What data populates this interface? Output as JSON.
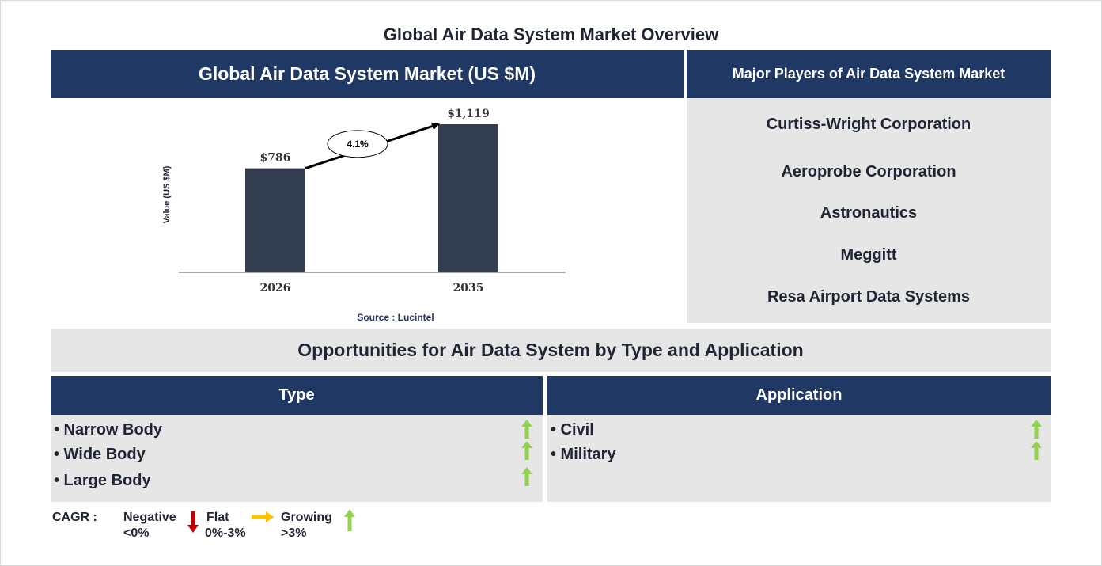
{
  "page": {
    "title": "Global Air Data System Market Overview"
  },
  "chart_panel": {
    "header": "Global Air Data System Market (US $M)",
    "source": "Source : Lucintel"
  },
  "chart_data": {
    "type": "bar",
    "title": "Global Air Data System Market (US $M)",
    "categories": [
      "2026",
      "2035"
    ],
    "values": [
      786,
      1119
    ],
    "value_labels": [
      "$786",
      "$1,119"
    ],
    "ylabel": "Value (US $M)",
    "xlabel": "",
    "ylim": [
      0,
      1300
    ],
    "grid": false,
    "legend": "none",
    "annotation": {
      "label": "4.1%",
      "meaning": "CAGR"
    },
    "bar_color": "#333f50"
  },
  "players": {
    "header": "Major Players of Air Data System Market",
    "items": [
      "Curtiss-Wright Corporation",
      "Aeroprobe Corporation",
      "Astronautics",
      "Meggitt",
      "Resa Airport Data Systems"
    ]
  },
  "opportunities": {
    "title": "Opportunities for Air Data System by Type and Application",
    "type": {
      "header": "Type",
      "items": [
        {
          "label": "• Narrow Body",
          "trend": "growing"
        },
        {
          "label": "• Wide Body",
          "trend": "growing"
        },
        {
          "label": "• Large Body",
          "trend": "growing"
        }
      ]
    },
    "application": {
      "header": "Application",
      "items": [
        {
          "label": "• Civil",
          "trend": "growing"
        },
        {
          "label": "• Military",
          "trend": "growing"
        }
      ]
    }
  },
  "legend": {
    "label": "CAGR :",
    "negative": {
      "name": "Negative",
      "range": "<0%",
      "color": "#c00000"
    },
    "flat": {
      "name": "Flat",
      "range": "0%-3%",
      "color": "#ffc000"
    },
    "growing": {
      "name": "Growing",
      "range": ">3%",
      "color": "#92d050"
    }
  },
  "colors": {
    "navy": "#203864",
    "panel_grey": "#e6e6e6",
    "arrow_green": "#92d050"
  }
}
